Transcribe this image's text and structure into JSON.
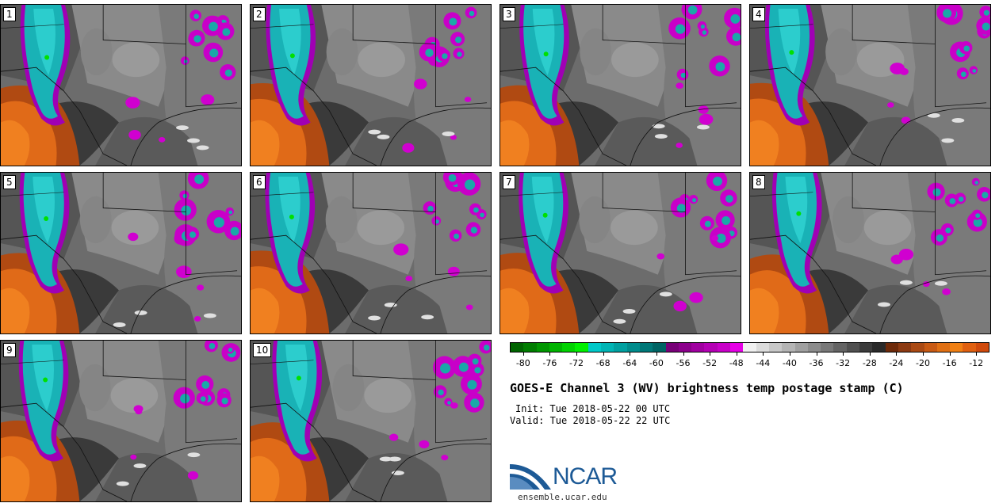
{
  "panels": [
    {
      "label": "1"
    },
    {
      "label": "2"
    },
    {
      "label": "3"
    },
    {
      "label": "4"
    },
    {
      "label": "5"
    },
    {
      "label": "6"
    },
    {
      "label": "7"
    },
    {
      "label": "8"
    },
    {
      "label": "9"
    },
    {
      "label": "10"
    }
  ],
  "colorbar": {
    "colors": [
      "#006400",
      "#007d00",
      "#009600",
      "#00b400",
      "#00d200",
      "#00f000",
      "#00c8c8",
      "#00b4b4",
      "#00a0a0",
      "#008c8c",
      "#007878",
      "#006464",
      "#780078",
      "#8c008c",
      "#a000a0",
      "#b400b4",
      "#c800c8",
      "#e600e6",
      "#f0f0f0",
      "#dcdcdc",
      "#c8c8c8",
      "#b4b4b4",
      "#a0a0a0",
      "#8c8c8c",
      "#787878",
      "#646464",
      "#505050",
      "#3c3c3c",
      "#2a2a2a",
      "#6e2a0a",
      "#8c3a12",
      "#aa4a14",
      "#c85a14",
      "#e07014",
      "#f08014",
      "#e06010",
      "#d04a0c"
    ],
    "ticks": [
      "-80",
      "-76",
      "-72",
      "-68",
      "-64",
      "-60",
      "-56",
      "-52",
      "-48",
      "-44",
      "-40",
      "-36",
      "-32",
      "-28",
      "-24",
      "-20",
      "-16",
      "-12"
    ]
  },
  "title": "GOES-E Channel 3 (WV) brightness temp postage stamp (C)",
  "init": "Init: Tue 2018-05-22 00 UTC",
  "valid": "Valid: Tue 2018-05-22 22 UTC",
  "logo_text": "NCAR",
  "site": "ensemble.ucar.edu"
}
